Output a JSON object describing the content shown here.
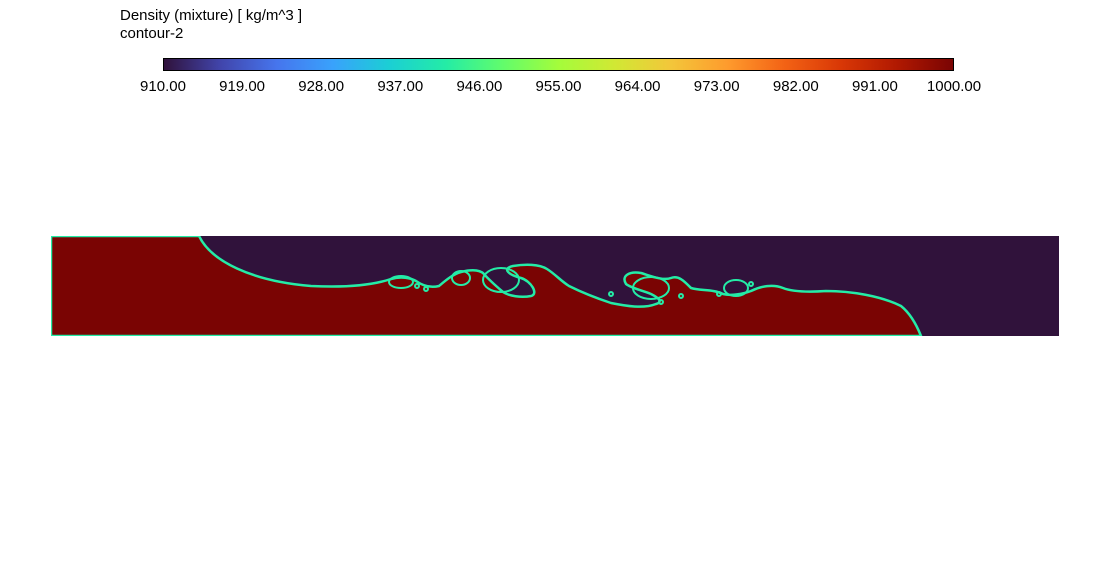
{
  "legend": {
    "title": "Density (mixture)  [ kg/m^3 ]",
    "subtitle": "contour-2",
    "min": 910.0,
    "max": 1000.0,
    "tick_labels": [
      "910.00",
      "919.00",
      "928.00",
      "937.00",
      "946.00",
      "955.00",
      "964.00",
      "973.00",
      "982.00",
      "991.00",
      "1000.00"
    ],
    "colormap": [
      "#30123b",
      "#4145ab",
      "#4675ed",
      "#39a2fc",
      "#1bcfd4",
      "#24eca6",
      "#61fc6c",
      "#a4fc3b",
      "#d1e834",
      "#f3c63a",
      "#fe9b2d",
      "#f36315",
      "#d93806",
      "#b11901",
      "#7a0403"
    ]
  },
  "contour": {
    "heavy_phase_color": "#7a0403",
    "light_phase_color": "#30123b",
    "interface_color": "#24eca6"
  }
}
